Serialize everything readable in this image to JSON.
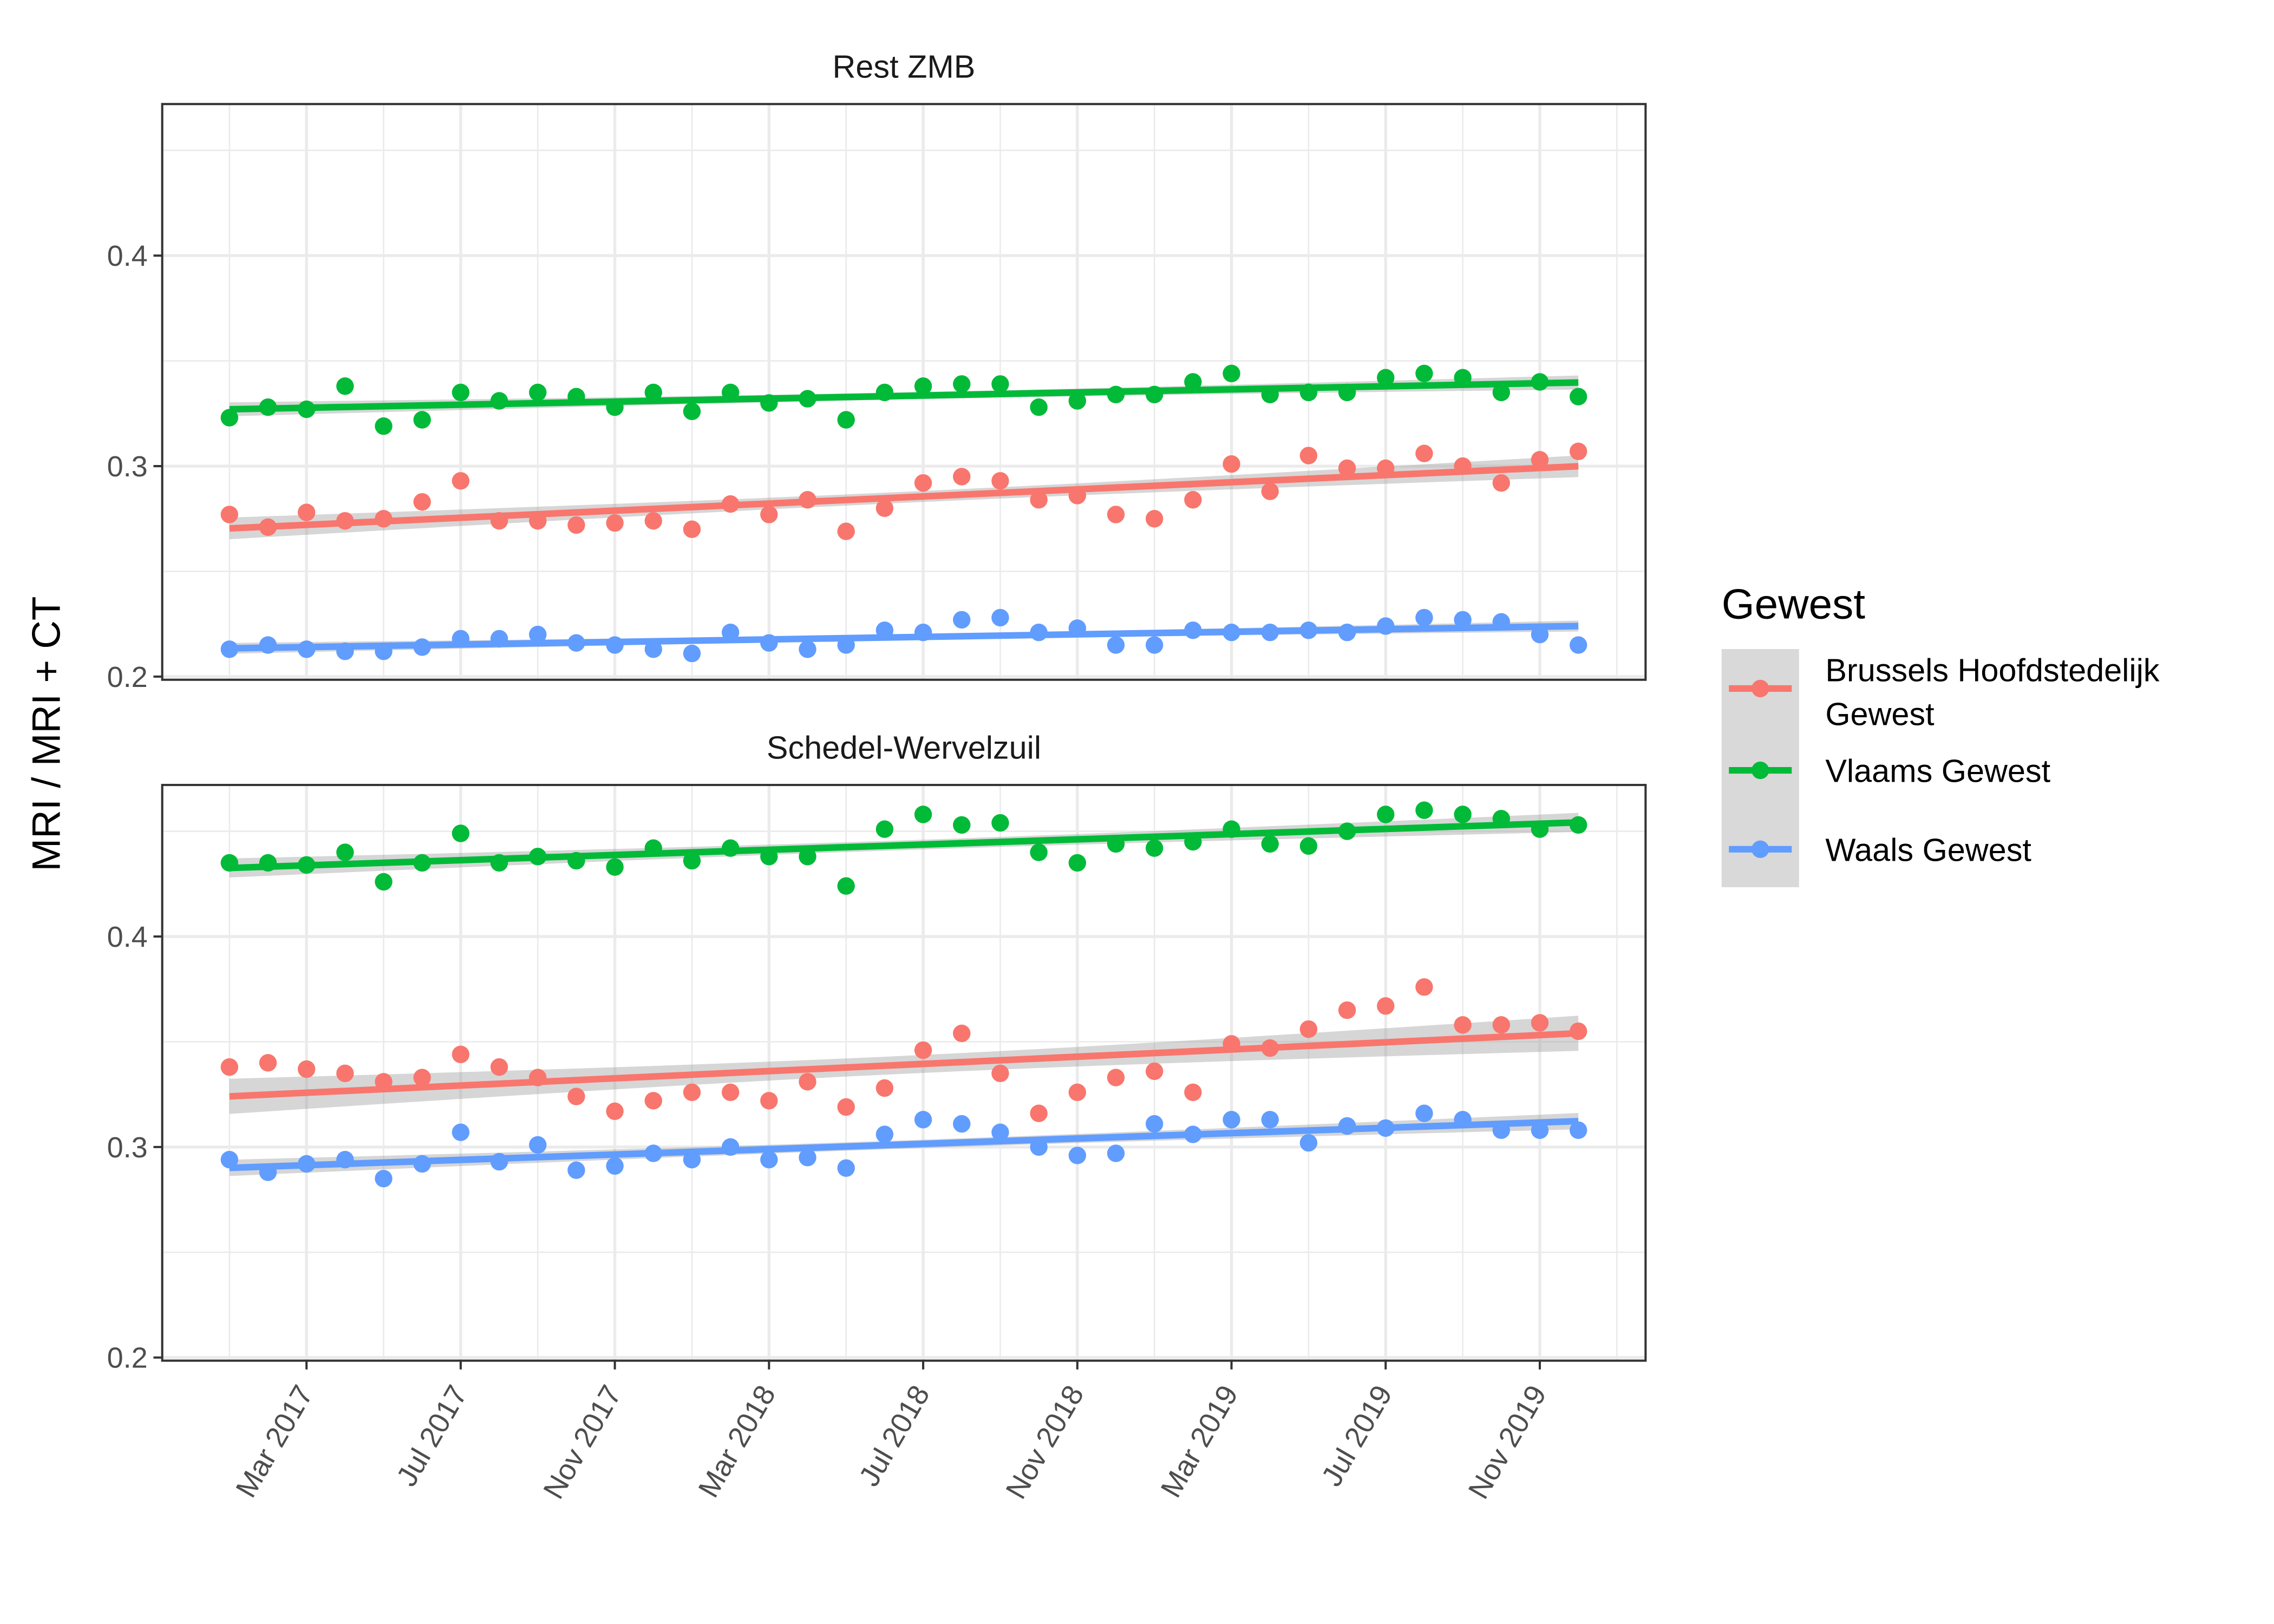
{
  "chart_data": {
    "type": "scatter",
    "ylabel": "MRI / MRI + CT",
    "xlabel": "",
    "ylim": [
      0.1985,
      0.472
    ],
    "y_ticks": [
      0.2,
      0.3,
      0.4
    ],
    "y_tick_labels": [
      "0.2",
      "0.3",
      "0.4"
    ],
    "x_ticks": [
      "2017-03",
      "2017-07",
      "2017-11",
      "2018-03",
      "2018-07",
      "2018-11",
      "2019-03",
      "2019-07",
      "2019-11"
    ],
    "x_tick_labels": [
      "Mar 2017",
      "Jul 2017",
      "Nov 2017",
      "Mar 2018",
      "Jul 2018",
      "Nov 2018",
      "Mar 2019",
      "Jul 2019",
      "Nov 2019"
    ],
    "x_range": [
      "2016-12",
      "2020-01"
    ],
    "grid": true,
    "trend": "linear fit with confidence band",
    "legend": {
      "title": "Gewest",
      "position": "right",
      "entries": [
        {
          "label_lines": [
            "Brussels Hoofdstedelijk",
            "Gewest"
          ],
          "color": "#F8766D"
        },
        {
          "label_lines": [
            "Vlaams Gewest"
          ],
          "color": "#00BA38"
        },
        {
          "label_lines": [
            "Waals Gewest"
          ],
          "color": "#619CFF"
        }
      ]
    },
    "x": [
      "2017-01",
      "2017-02",
      "2017-03",
      "2017-04",
      "2017-05",
      "2017-06",
      "2017-07",
      "2017-08",
      "2017-09",
      "2017-10",
      "2017-11",
      "2017-12",
      "2018-01",
      "2018-02",
      "2018-03",
      "2018-04",
      "2018-05",
      "2018-06",
      "2018-07",
      "2018-08",
      "2018-09",
      "2018-10",
      "2018-11",
      "2018-12",
      "2019-01",
      "2019-02",
      "2019-03",
      "2019-04",
      "2019-05",
      "2019-06",
      "2019-07",
      "2019-08",
      "2019-09",
      "2019-10",
      "2019-11",
      "2019-12"
    ],
    "panels": [
      {
        "title": "Rest ZMB",
        "series": [
          {
            "name": "Brussels Hoofdstedelijk Gewest",
            "color": "#F8766D",
            "values": [
              0.277,
              0.271,
              0.278,
              0.274,
              0.275,
              0.283,
              0.293,
              0.274,
              0.274,
              0.272,
              0.273,
              0.274,
              0.27,
              0.282,
              0.277,
              0.284,
              0.269,
              0.28,
              0.292,
              0.295,
              0.293,
              0.284,
              0.286,
              0.277,
              0.275,
              0.284,
              0.301,
              0.288,
              0.305,
              0.299,
              0.299,
              0.306,
              0.3,
              0.292,
              0.303,
              0.307
            ]
          },
          {
            "name": "Vlaams Gewest",
            "color": "#00BA38",
            "values": [
              0.323,
              0.328,
              0.327,
              0.338,
              0.319,
              0.322,
              0.335,
              0.331,
              0.335,
              0.333,
              0.328,
              0.335,
              0.326,
              0.335,
              0.33,
              0.332,
              0.322,
              0.335,
              0.338,
              0.339,
              0.339,
              0.328,
              0.331,
              0.334,
              0.334,
              0.34,
              0.344,
              0.334,
              0.335,
              0.335,
              0.342,
              0.344,
              0.342,
              0.335,
              0.34,
              0.333
            ]
          },
          {
            "name": "Waals Gewest",
            "color": "#619CFF",
            "values": [
              0.213,
              0.215,
              0.213,
              0.212,
              0.212,
              0.214,
              0.218,
              0.218,
              0.22,
              0.216,
              0.215,
              0.213,
              0.211,
              0.221,
              0.216,
              0.213,
              0.215,
              0.222,
              0.221,
              0.227,
              0.228,
              0.221,
              0.223,
              0.215,
              0.215,
              0.222,
              0.221,
              0.221,
              0.222,
              0.221,
              0.224,
              0.228,
              0.227,
              0.226,
              0.22,
              0.215
            ]
          }
        ]
      },
      {
        "title": "Schedel-Wervelzuil",
        "series": [
          {
            "name": "Brussels Hoofdstedelijk Gewest",
            "color": "#F8766D",
            "values": [
              0.338,
              0.34,
              0.337,
              0.335,
              0.331,
              0.333,
              0.344,
              0.338,
              0.333,
              0.324,
              0.317,
              0.322,
              0.326,
              0.326,
              0.322,
              0.331,
              0.319,
              0.328,
              0.346,
              0.354,
              0.335,
              0.316,
              0.326,
              0.333,
              0.336,
              0.326,
              0.349,
              0.347,
              0.356,
              0.365,
              0.367,
              0.376,
              0.358,
              0.358,
              0.359,
              0.355
            ]
          },
          {
            "name": "Vlaams Gewest",
            "color": "#00BA38",
            "values": [
              0.435,
              0.435,
              0.434,
              0.44,
              0.426,
              0.435,
              0.449,
              0.435,
              0.438,
              0.436,
              0.433,
              0.442,
              0.436,
              0.442,
              0.438,
              0.438,
              0.424,
              0.451,
              0.458,
              0.453,
              0.454,
              0.44,
              0.435,
              0.444,
              0.442,
              0.445,
              0.451,
              0.444,
              0.443,
              0.45,
              0.458,
              0.46,
              0.458,
              0.456,
              0.451,
              0.453
            ]
          },
          {
            "name": "Waals Gewest",
            "color": "#619CFF",
            "values": [
              0.294,
              0.288,
              0.292,
              0.294,
              0.285,
              0.292,
              0.307,
              0.293,
              0.301,
              0.289,
              0.291,
              0.297,
              0.294,
              0.3,
              0.294,
              0.295,
              0.29,
              0.306,
              0.313,
              0.311,
              0.307,
              0.3,
              0.296,
              0.297,
              0.311,
              0.306,
              0.313,
              0.313,
              0.302,
              0.31,
              0.309,
              0.316,
              0.313,
              0.308,
              0.308,
              0.308
            ]
          }
        ]
      }
    ]
  }
}
